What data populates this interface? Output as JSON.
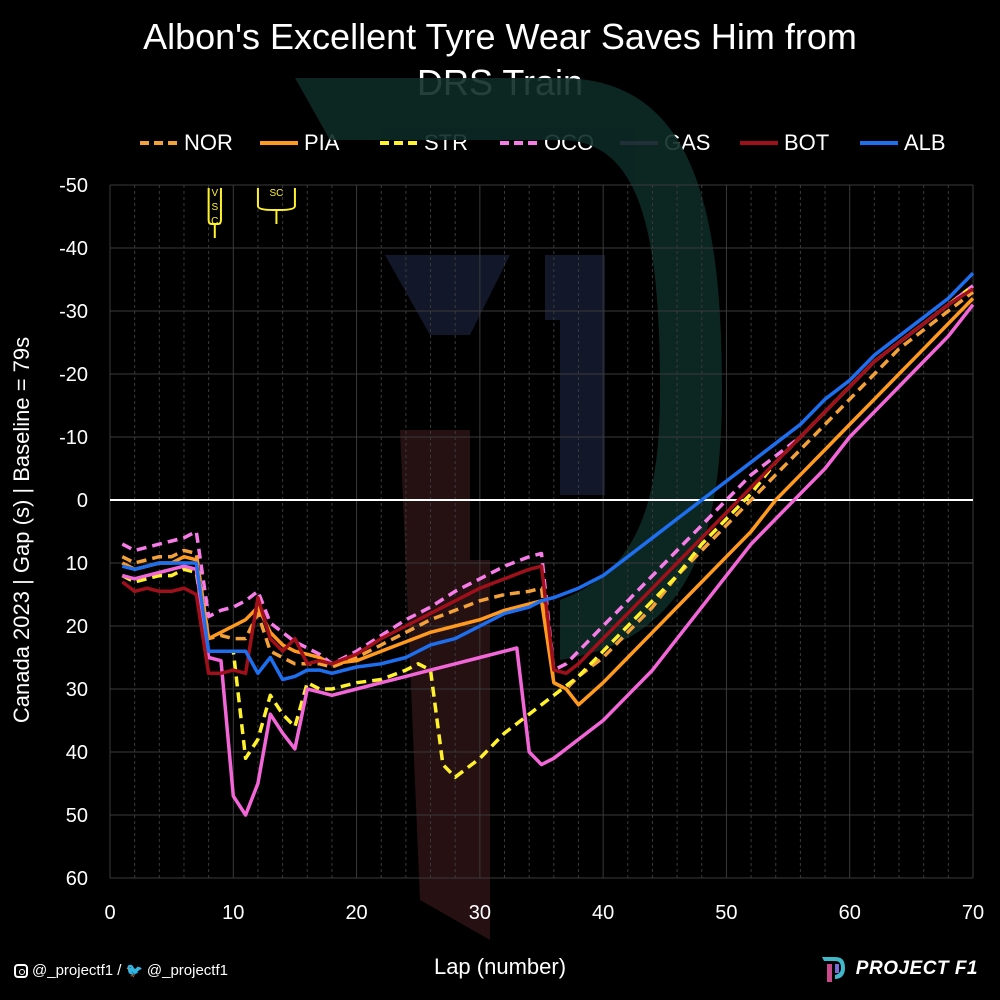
{
  "title_lines": [
    "Albon's Excellent Tyre Wear Saves Him from",
    "DRS Train"
  ],
  "ylabel": "Canada 2023  |  Gap (s)  |  Baseline = 79s",
  "xlabel": "Lap (number)",
  "credit": {
    "instagram_handle": "@_projectf1 /",
    "twitter_handle": "@_projectf1"
  },
  "brand": "PROJECT F1",
  "annotations": [
    {
      "text": [
        "V",
        "S",
        "C"
      ],
      "lap_range": [
        8,
        9
      ]
    },
    {
      "text": [
        "SC"
      ],
      "lap_range": [
        12,
        15
      ]
    }
  ],
  "chart_data": {
    "type": "line",
    "xlabel": "Lap (number)",
    "ylabel": "Canada 2023  |  Gap (s)  |  Baseline = 79s",
    "xlim": [
      0,
      70
    ],
    "ylim": [
      60,
      -50
    ],
    "y_inverted": true,
    "x_ticks": [
      0,
      10,
      20,
      30,
      40,
      50,
      60,
      70
    ],
    "y_ticks": [
      -50,
      -40,
      -30,
      -20,
      -10,
      0,
      10,
      20,
      30,
      40,
      50,
      60
    ],
    "grid": true,
    "legend_position": "top",
    "series": [
      {
        "name": "NOR",
        "color": "#F5A13A",
        "dash": true,
        "points": [
          [
            1,
            9
          ],
          [
            2,
            10
          ],
          [
            3,
            9.5
          ],
          [
            4,
            9
          ],
          [
            5,
            9
          ],
          [
            6,
            8
          ],
          [
            7,
            8.5
          ],
          [
            8,
            22
          ],
          [
            9,
            21.5
          ],
          [
            10,
            22
          ],
          [
            11,
            22
          ],
          [
            12,
            18
          ],
          [
            13,
            24
          ],
          [
            14,
            25
          ],
          [
            15,
            26
          ],
          [
            16,
            26
          ],
          [
            17,
            26
          ],
          [
            18,
            26.5
          ],
          [
            20,
            25
          ],
          [
            22,
            23
          ],
          [
            24,
            21
          ],
          [
            26,
            19
          ],
          [
            28,
            17.5
          ],
          [
            30,
            16
          ],
          [
            32,
            15
          ],
          [
            34,
            14.5
          ],
          [
            35,
            14
          ],
          [
            36,
            29
          ],
          [
            37,
            30
          ],
          [
            38,
            28
          ],
          [
            40,
            25
          ],
          [
            42,
            21
          ],
          [
            44,
            17
          ],
          [
            46,
            12
          ],
          [
            48,
            8
          ],
          [
            50,
            4
          ],
          [
            52,
            0
          ],
          [
            54,
            -4
          ],
          [
            56,
            -8
          ],
          [
            58,
            -12
          ],
          [
            60,
            -16
          ],
          [
            62,
            -20
          ],
          [
            64,
            -24
          ],
          [
            66,
            -27
          ],
          [
            68,
            -30
          ],
          [
            70,
            -33
          ]
        ]
      },
      {
        "name": "PIA",
        "color": "#FF9A1F",
        "dash": false,
        "points": [
          [
            1,
            10
          ],
          [
            2,
            11
          ],
          [
            3,
            10.5
          ],
          [
            4,
            10
          ],
          [
            5,
            10
          ],
          [
            6,
            9
          ],
          [
            7,
            9.5
          ],
          [
            8,
            22
          ],
          [
            9,
            21
          ],
          [
            10,
            20
          ],
          [
            11,
            19
          ],
          [
            12,
            17
          ],
          [
            13,
            21
          ],
          [
            14,
            23
          ],
          [
            15,
            24
          ],
          [
            16,
            24.5
          ],
          [
            17,
            25
          ],
          [
            18,
            26
          ],
          [
            20,
            25.5
          ],
          [
            22,
            24
          ],
          [
            24,
            22.5
          ],
          [
            26,
            21
          ],
          [
            28,
            20
          ],
          [
            30,
            19
          ],
          [
            32,
            17.5
          ],
          [
            34,
            16.5
          ],
          [
            35,
            16
          ],
          [
            36,
            29
          ],
          [
            37,
            30
          ],
          [
            38,
            32.5
          ],
          [
            40,
            29
          ],
          [
            42,
            25
          ],
          [
            44,
            21
          ],
          [
            46,
            17
          ],
          [
            48,
            13
          ],
          [
            50,
            9
          ],
          [
            52,
            5
          ],
          [
            54,
            0
          ],
          [
            56,
            -4
          ],
          [
            58,
            -8
          ],
          [
            60,
            -12
          ],
          [
            62,
            -16
          ],
          [
            64,
            -20
          ],
          [
            66,
            -24
          ],
          [
            68,
            -28
          ],
          [
            70,
            -32
          ]
        ]
      },
      {
        "name": "STR",
        "color": "#FFF12B",
        "dash": true,
        "points": [
          [
            1,
            12
          ],
          [
            2,
            13
          ],
          [
            3,
            12.5
          ],
          [
            4,
            12
          ],
          [
            5,
            12
          ],
          [
            6,
            11
          ],
          [
            7,
            11.5
          ],
          [
            8,
            24
          ],
          [
            9,
            24
          ],
          [
            10,
            24
          ],
          [
            11,
            41
          ],
          [
            12,
            38
          ],
          [
            13,
            31
          ],
          [
            14,
            34
          ],
          [
            15,
            36
          ],
          [
            16,
            29
          ],
          [
            17,
            30
          ],
          [
            18,
            30
          ],
          [
            20,
            29
          ],
          [
            22,
            28.5
          ],
          [
            24,
            27
          ],
          [
            25,
            26
          ],
          [
            26,
            27
          ],
          [
            27,
            42
          ],
          [
            28,
            44
          ],
          [
            30,
            41
          ],
          [
            32,
            37
          ],
          [
            34,
            34
          ],
          [
            36,
            31
          ],
          [
            38,
            28
          ],
          [
            40,
            24
          ],
          [
            42,
            20
          ],
          [
            44,
            16
          ],
          [
            46,
            12
          ],
          [
            48,
            7
          ],
          [
            50,
            3
          ],
          [
            52,
            -1
          ],
          [
            54,
            -6
          ],
          [
            56,
            -10
          ],
          [
            58,
            -14
          ],
          [
            60,
            -18
          ],
          [
            62,
            -22
          ],
          [
            64,
            -25
          ],
          [
            66,
            -28
          ],
          [
            68,
            -31
          ],
          [
            70,
            -34
          ]
        ]
      },
      {
        "name": "OCO",
        "color": "#F77CE8",
        "dash": true,
        "points": [
          [
            1,
            7
          ],
          [
            2,
            8
          ],
          [
            3,
            7.5
          ],
          [
            4,
            7
          ],
          [
            5,
            6.5
          ],
          [
            6,
            6
          ],
          [
            7,
            5
          ],
          [
            8,
            18.5
          ],
          [
            9,
            17.5
          ],
          [
            10,
            17
          ],
          [
            11,
            16
          ],
          [
            12,
            14.5
          ],
          [
            13,
            19.5
          ],
          [
            14,
            21
          ],
          [
            15,
            22.5
          ],
          [
            16,
            23.5
          ],
          [
            17,
            24.5
          ],
          [
            18,
            26
          ],
          [
            20,
            24
          ],
          [
            22,
            21.5
          ],
          [
            24,
            19
          ],
          [
            26,
            17
          ],
          [
            28,
            14.5
          ],
          [
            30,
            12.5
          ],
          [
            32,
            10.5
          ],
          [
            34,
            9
          ],
          [
            35,
            8.5
          ],
          [
            36,
            27
          ],
          [
            37,
            26
          ],
          [
            38,
            24
          ],
          [
            40,
            20
          ],
          [
            42,
            16
          ],
          [
            44,
            12
          ],
          [
            46,
            8
          ],
          [
            48,
            4
          ],
          [
            50,
            0
          ],
          [
            52,
            -4
          ],
          [
            54,
            -7
          ],
          [
            56,
            -10
          ],
          [
            58,
            -14
          ],
          [
            60,
            -18
          ],
          [
            62,
            -22
          ],
          [
            64,
            -25
          ],
          [
            66,
            -28
          ],
          [
            68,
            -31
          ],
          [
            70,
            -34
          ]
        ]
      },
      {
        "name": "GAS",
        "color": "#F266D8",
        "dash": false,
        "points": [
          [
            1,
            12
          ],
          [
            2,
            12.5
          ],
          [
            3,
            12
          ],
          [
            4,
            11.5
          ],
          [
            5,
            11
          ],
          [
            6,
            10.5
          ],
          [
            7,
            11
          ],
          [
            8,
            25
          ],
          [
            9,
            25.5
          ],
          [
            10,
            47
          ],
          [
            11,
            50
          ],
          [
            12,
            45
          ],
          [
            13,
            34
          ],
          [
            14,
            37
          ],
          [
            15,
            39.5
          ],
          [
            16,
            30
          ],
          [
            17,
            30.5
          ],
          [
            18,
            31
          ],
          [
            20,
            30
          ],
          [
            22,
            29
          ],
          [
            24,
            28
          ],
          [
            26,
            27
          ],
          [
            28,
            26
          ],
          [
            30,
            25
          ],
          [
            32,
            24
          ],
          [
            33,
            23.5
          ],
          [
            34,
            40
          ],
          [
            35,
            42
          ],
          [
            36,
            41
          ],
          [
            38,
            38
          ],
          [
            40,
            35
          ],
          [
            42,
            31
          ],
          [
            44,
            27
          ],
          [
            46,
            22
          ],
          [
            48,
            17
          ],
          [
            50,
            12
          ],
          [
            52,
            7
          ],
          [
            54,
            3
          ],
          [
            56,
            -1
          ],
          [
            58,
            -5
          ],
          [
            60,
            -10
          ],
          [
            62,
            -14
          ],
          [
            64,
            -18
          ],
          [
            66,
            -22
          ],
          [
            68,
            -26
          ],
          [
            70,
            -31
          ]
        ]
      },
      {
        "name": "BOT",
        "color": "#A0101A",
        "dash": false,
        "points": [
          [
            1,
            13
          ],
          [
            2,
            14.5
          ],
          [
            3,
            14
          ],
          [
            4,
            14.5
          ],
          [
            5,
            14.5
          ],
          [
            6,
            14
          ],
          [
            7,
            15
          ],
          [
            8,
            27.5
          ],
          [
            9,
            27.5
          ],
          [
            10,
            27
          ],
          [
            11,
            27.5
          ],
          [
            12,
            15.5
          ],
          [
            13,
            22
          ],
          [
            14,
            24
          ],
          [
            15,
            22
          ],
          [
            16,
            26
          ],
          [
            17,
            25.5
          ],
          [
            18,
            26
          ],
          [
            20,
            24.5
          ],
          [
            22,
            22
          ],
          [
            24,
            20
          ],
          [
            26,
            18
          ],
          [
            28,
            16
          ],
          [
            30,
            14
          ],
          [
            32,
            12.5
          ],
          [
            34,
            11
          ],
          [
            35,
            10.5
          ],
          [
            36,
            27
          ],
          [
            37,
            27.5
          ],
          [
            38,
            26
          ],
          [
            40,
            22
          ],
          [
            42,
            18
          ],
          [
            44,
            14
          ],
          [
            46,
            10
          ],
          [
            48,
            6
          ],
          [
            50,
            2
          ],
          [
            52,
            -2
          ],
          [
            54,
            -6
          ],
          [
            56,
            -10
          ],
          [
            58,
            -14
          ],
          [
            60,
            -18
          ],
          [
            62,
            -22
          ],
          [
            64,
            -25
          ],
          [
            66,
            -28
          ],
          [
            68,
            -31
          ],
          [
            70,
            -33.5
          ]
        ]
      },
      {
        "name": "ALB",
        "color": "#1E6FF0",
        "dash": false,
        "points": [
          [
            1,
            10.5
          ],
          [
            2,
            11
          ],
          [
            3,
            10.5
          ],
          [
            4,
            10
          ],
          [
            5,
            10
          ],
          [
            6,
            10
          ],
          [
            7,
            10
          ],
          [
            8,
            24
          ],
          [
            9,
            24
          ],
          [
            10,
            24
          ],
          [
            11,
            24
          ],
          [
            12,
            27.5
          ],
          [
            13,
            25
          ],
          [
            14,
            28.5
          ],
          [
            15,
            28
          ],
          [
            16,
            27
          ],
          [
            17,
            27
          ],
          [
            18,
            27.5
          ],
          [
            20,
            26.5
          ],
          [
            22,
            26
          ],
          [
            24,
            25
          ],
          [
            26,
            23
          ],
          [
            28,
            22
          ],
          [
            30,
            20
          ],
          [
            32,
            18
          ],
          [
            34,
            17
          ],
          [
            35,
            16
          ],
          [
            36,
            15.5
          ],
          [
            38,
            14
          ],
          [
            40,
            12
          ],
          [
            42,
            9
          ],
          [
            44,
            6
          ],
          [
            46,
            3
          ],
          [
            48,
            0
          ],
          [
            50,
            -3
          ],
          [
            52,
            -6
          ],
          [
            54,
            -9
          ],
          [
            56,
            -12
          ],
          [
            58,
            -16
          ],
          [
            60,
            -19
          ],
          [
            62,
            -23
          ],
          [
            64,
            -26
          ],
          [
            66,
            -29
          ],
          [
            68,
            -32
          ],
          [
            70,
            -36
          ]
        ]
      }
    ]
  }
}
